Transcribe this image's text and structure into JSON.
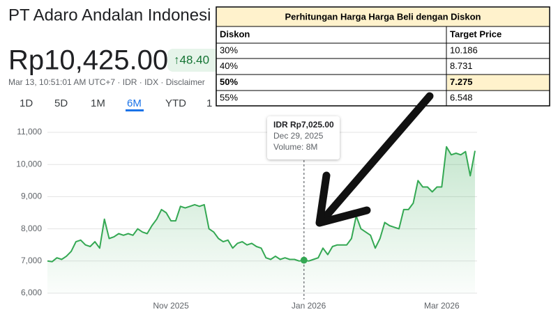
{
  "header": {
    "title": "PT Adaro Andalan Indonesi",
    "price": "Rp10,425.00",
    "change": "↑48.40",
    "subtitle": "Mar 13, 10:51:01 AM UTC+7 · IDR · IDX · Disclaimer",
    "tabs": [
      "1D",
      "5D",
      "1M",
      "6M",
      "YTD",
      "1"
    ]
  },
  "table": {
    "title": "Perhitungan Harga Harga Beli dengan Diskon",
    "header": [
      "Diskon",
      "Target Price"
    ],
    "rows": [
      [
        "30%",
        "10.186"
      ],
      [
        "40%",
        "8.731"
      ],
      [
        "50%",
        "7.275"
      ],
      [
        "55%",
        "6.548"
      ]
    ]
  },
  "tooltip": {
    "price": "IDR Rp7,025.00",
    "date": "Dec 29, 2025",
    "volume": "Volume: 8M"
  },
  "chart_data": {
    "type": "line",
    "color": "#34a853",
    "grid": true,
    "categories": [
      null,
      null,
      null,
      null,
      null,
      null,
      null,
      null,
      null,
      null,
      null,
      null,
      null,
      null,
      null,
      null,
      null,
      null,
      null,
      null,
      null,
      null,
      null,
      null,
      null,
      null,
      "Nov 2025",
      null,
      null,
      null,
      null,
      null,
      null,
      null,
      null,
      null,
      null,
      null,
      null,
      null,
      null,
      null,
      null,
      null,
      null,
      null,
      null,
      null,
      null,
      null,
      null,
      null,
      null,
      null,
      null,
      "Jan 2026",
      null,
      null,
      null,
      null,
      null,
      null,
      null,
      null,
      null,
      null,
      null,
      null,
      null,
      null,
      null,
      null,
      null,
      null,
      null,
      null,
      null,
      null,
      null,
      null,
      null,
      null,
      null,
      "Mar 2026",
      null,
      null,
      null,
      null,
      null,
      null,
      null
    ],
    "values": [
      7000,
      6980,
      7100,
      7050,
      7150,
      7300,
      7600,
      7650,
      7500,
      7450,
      7600,
      7400,
      8300,
      7700,
      7750,
      7850,
      7800,
      7850,
      7800,
      8000,
      7900,
      7850,
      8100,
      8300,
      8600,
      8500,
      8250,
      8250,
      8700,
      8650,
      8700,
      8750,
      8700,
      8750,
      8000,
      7900,
      7700,
      7600,
      7650,
      7400,
      7550,
      7600,
      7500,
      7550,
      7450,
      7400,
      7100,
      7050,
      7150,
      7050,
      7100,
      7050,
      7050,
      7000,
      7025,
      7000,
      7050,
      7100,
      7400,
      7200,
      7450,
      7500,
      7500,
      7500,
      7700,
      8400,
      8000,
      7900,
      7800,
      7400,
      7700,
      8200,
      8100,
      8050,
      8000,
      8600,
      8600,
      8800,
      9500,
      9300,
      9300,
      9150,
      9300,
      9300,
      10550,
      10300,
      10350,
      10300,
      10400,
      9650,
      10425
    ],
    "ylim": [
      6000,
      11000
    ],
    "yticks": [
      {
        "value": 6000,
        "label": "6,000"
      },
      {
        "value": 7000,
        "label": "7,000"
      },
      {
        "value": 8000,
        "label": "8,000"
      },
      {
        "value": 9000,
        "label": "9,000"
      },
      {
        "value": 10000,
        "label": "10,000"
      },
      {
        "value": 11000,
        "label": "11,000"
      }
    ]
  }
}
